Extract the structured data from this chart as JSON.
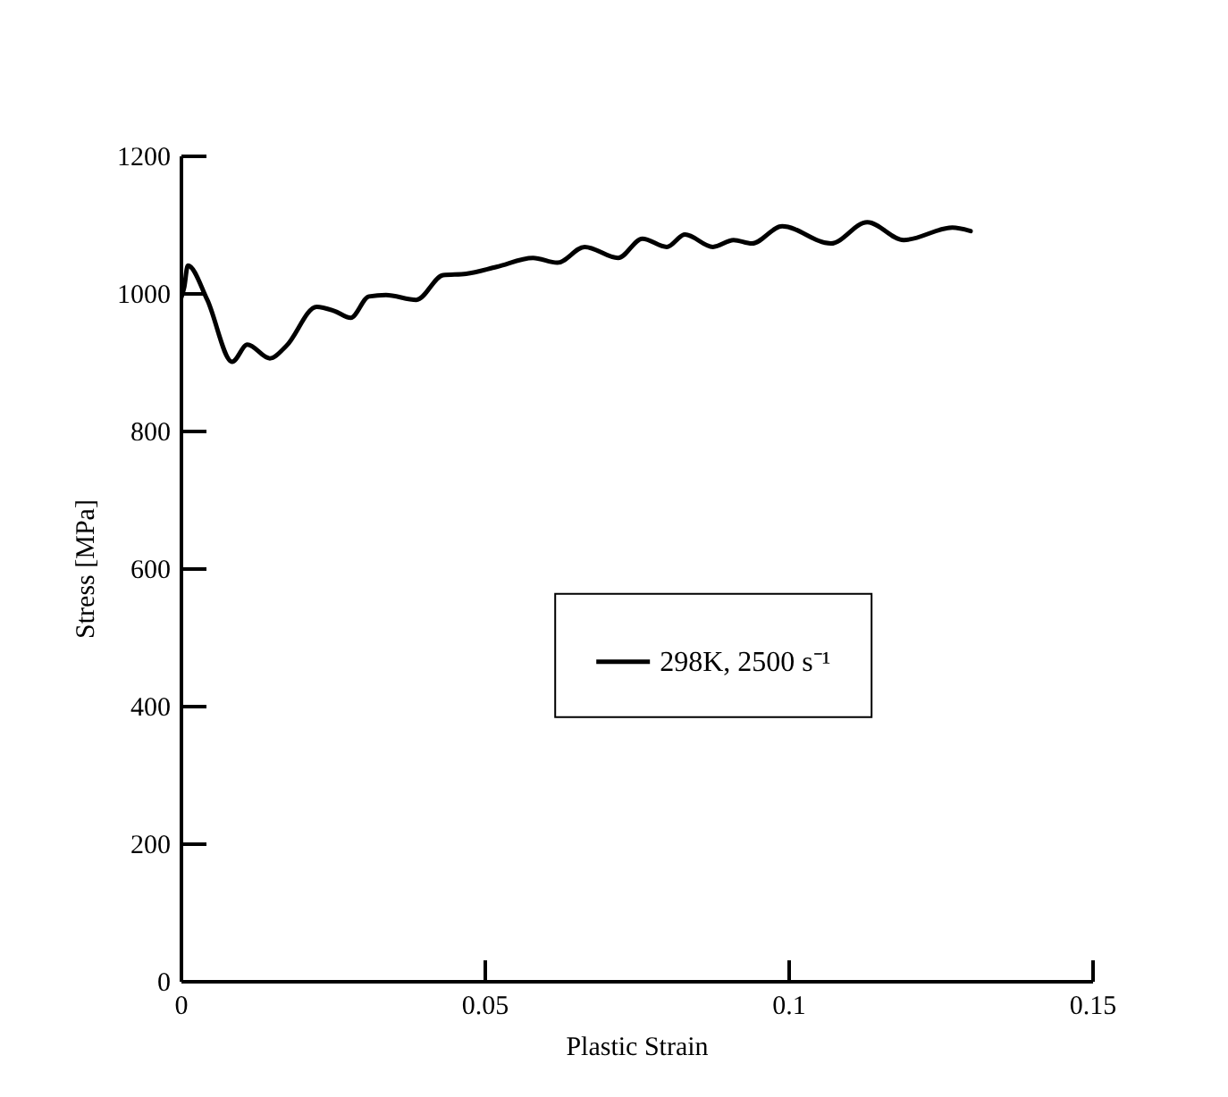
{
  "chart_data": {
    "type": "line",
    "xlabel": "Plastic Strain",
    "ylabel": "Stress [MPa]",
    "x": [
      0,
      0.0006,
      0.0012,
      0.0044,
      0.0085,
      0.011,
      0.0147,
      0.0174,
      0.0224,
      0.0253,
      0.028,
      0.031,
      0.0338,
      0.0388,
      0.0432,
      0.047,
      0.052,
      0.058,
      0.062,
      0.0665,
      0.072,
      0.076,
      0.08,
      0.083,
      0.0876,
      0.091,
      0.094,
      0.099,
      0.107,
      0.113,
      0.119,
      0.127,
      0.13
    ],
    "series": [
      {
        "name": "298K, 2500 s⁻¹",
        "color": "#000000",
        "values": [
          990,
          1008,
          1040,
          990,
          900,
          925,
          905,
          923,
          980,
          974,
          964,
          995,
          997,
          990,
          1026,
          1028,
          1038,
          1051,
          1044,
          1067,
          1051,
          1079,
          1067,
          1085,
          1067,
          1077,
          1072,
          1097,
          1072,
          1103,
          1077,
          1095,
          1090
        ]
      }
    ],
    "xlim": [
      0,
      0.15
    ],
    "xticks": [
      0,
      0.05,
      0.1,
      0.15
    ],
    "ylim": [
      0,
      1200
    ],
    "yticks": [
      0,
      200,
      400,
      600,
      800,
      1000,
      1200
    ],
    "grid": false,
    "legend": "right",
    "line_style": "solid"
  }
}
